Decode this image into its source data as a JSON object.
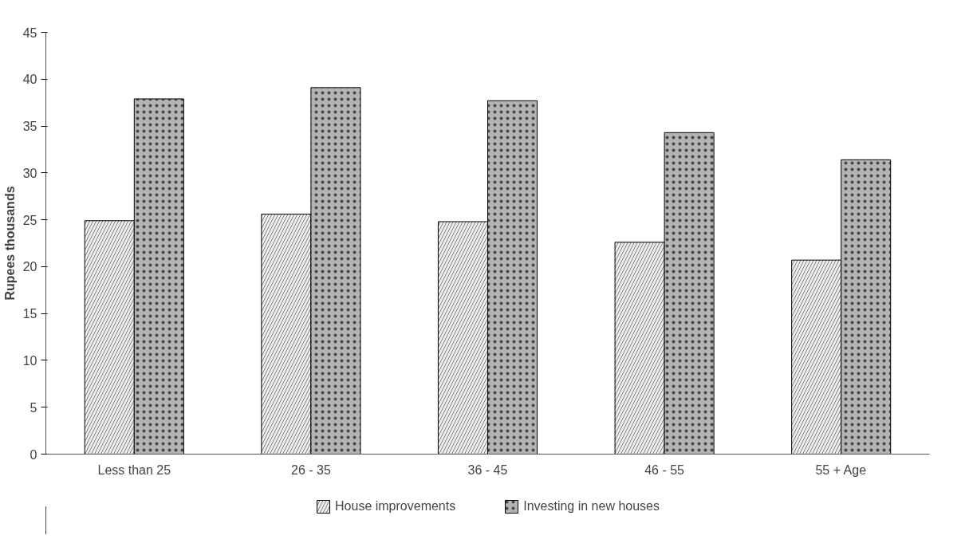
{
  "chart_data": {
    "type": "bar",
    "ylabel": "Rupees thousands",
    "categories": [
      "Less than 25",
      "26 - 35",
      "36 - 45",
      "46 - 55",
      "55 + Age"
    ],
    "series": [
      {
        "name": "House improvements",
        "color": "#eeeeee",
        "values": [
          24.9,
          25.6,
          24.8,
          22.6,
          20.7
        ]
      },
      {
        "name": "Investing in new houses",
        "color": "#b4b4b4",
        "values": [
          37.9,
          39.1,
          37.7,
          34.3,
          31.4
        ]
      }
    ],
    "ylim": [
      0,
      45
    ],
    "yticks": [
      0,
      5,
      10,
      15,
      20,
      25,
      30,
      35,
      40,
      45
    ],
    "grid": false,
    "legend": "bottom"
  }
}
